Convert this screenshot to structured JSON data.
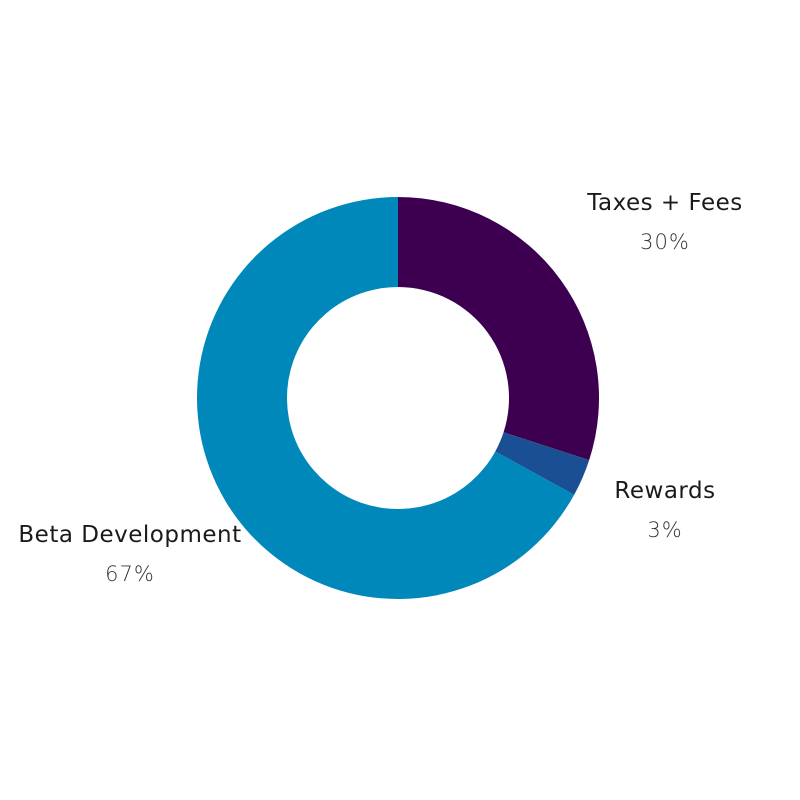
{
  "chart_data": {
    "type": "pie",
    "donut": true,
    "title": "",
    "legend": "none",
    "slices": [
      {
        "label": "Taxes + Fees",
        "value": 30,
        "value_label": "30%",
        "color": "#3d0050"
      },
      {
        "label": "Rewards",
        "value": 3,
        "value_label": "3%",
        "color": "#1b4f93"
      },
      {
        "label": "Beta Development",
        "value": 67,
        "value_label": "67%",
        "color": "#0088bb"
      }
    ]
  }
}
